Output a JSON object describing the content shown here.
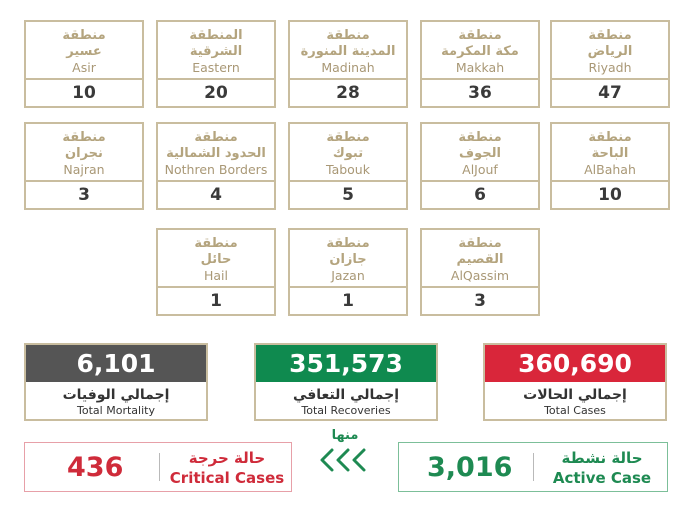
{
  "regions": [
    {
      "ar": "منطقة\nعسير",
      "en": "Asir",
      "count": "10"
    },
    {
      "ar": "المنطقة\nالشرقية",
      "en": "Eastern",
      "count": "20"
    },
    {
      "ar": "منطقة\nالمدينة المنورة",
      "en": "Madinah",
      "count": "28"
    },
    {
      "ar": "منطقة\nمكة المكرمة",
      "en": "Makkah",
      "count": "36"
    },
    {
      "ar": "منطقة\nالرياض",
      "en": "Riyadh",
      "count": "47"
    },
    {
      "ar": "منطقة\nنجران",
      "en": "Najran",
      "count": "3"
    },
    {
      "ar": "منطقة\nالحدود الشمالية",
      "en": "Nothren Borders",
      "count": "4"
    },
    {
      "ar": "منطقة\nتبوك",
      "en": "Tabouk",
      "count": "5"
    },
    {
      "ar": "منطقة\nالجوف",
      "en": "AlJouf",
      "count": "6"
    },
    {
      "ar": "منطقة\nالباحة",
      "en": "AlBahah",
      "count": "10"
    },
    {
      "ar": "منطقة\nحائل",
      "en": "Hail",
      "count": "1"
    },
    {
      "ar": "منطقة\nجازان",
      "en": "Jazan",
      "count": "1"
    },
    {
      "ar": "منطقة\nالقصيم",
      "en": "AlQassim",
      "count": "3"
    }
  ],
  "totals": {
    "mortality": {
      "value": "6,101",
      "ar": "إجمالي الوفيات",
      "en": "Total Mortality",
      "color": "#555555"
    },
    "recoveries": {
      "value": "351,573",
      "ar": "إجمالي التعافي",
      "en": "Total Recoveries",
      "color": "#0f8a4f"
    },
    "cases": {
      "value": "360,690",
      "ar": "إجمالي الحالات",
      "en": "Total Cases",
      "color": "#d9263a"
    }
  },
  "critical": {
    "value": "436",
    "ar": "حالة حرجة",
    "en": "Critical Cases",
    "color": "#cf2b3a"
  },
  "active": {
    "value": "3,016",
    "ar": "حالة نشطة",
    "en": "Active Case",
    "color": "#1e8a52"
  },
  "of_which": {
    "ar": "منها",
    "arrow_icon": "triple-chevron-left-icon"
  }
}
